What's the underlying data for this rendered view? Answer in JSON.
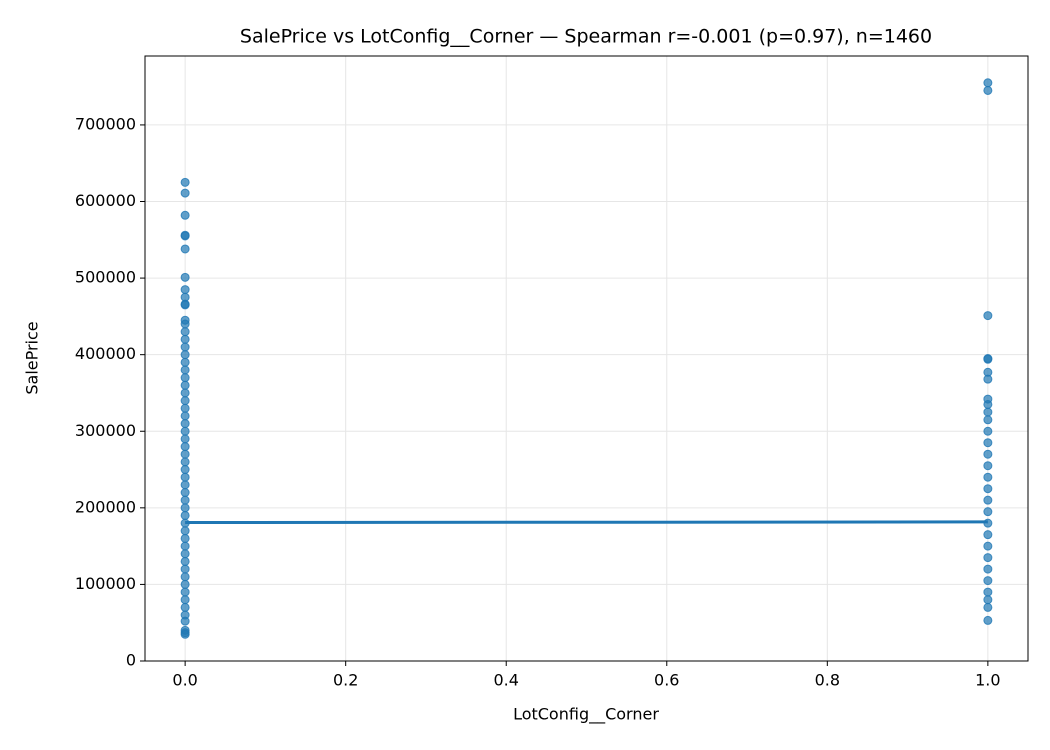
{
  "chart_data": {
    "type": "scatter",
    "title": "SalePrice vs LotConfig__Corner — Spearman r=-0.001 (p=0.97), n=1460",
    "x_label": "LotConfig__Corner",
    "y_label": "SalePrice",
    "color": "#1f77b4",
    "grid": true,
    "xlim": [
      -0.05,
      1.05
    ],
    "ylim": [
      0,
      790000
    ],
    "xticks": [
      {
        "value": 0,
        "label": "0.0"
      },
      0.2,
      0.4,
      0.6,
      0.8,
      {
        "value": 1,
        "label": "1.0"
      }
    ],
    "yticks": [
      0,
      100000,
      200000,
      300000,
      400000,
      500000,
      600000,
      700000
    ],
    "x": [
      0,
      0,
      0,
      0,
      0,
      0,
      0,
      0,
      0,
      0,
      0,
      0,
      0,
      0,
      0,
      0,
      0,
      0,
      0,
      0,
      0,
      0,
      0,
      0,
      0,
      0,
      0,
      0,
      0,
      0,
      0,
      0,
      0,
      0,
      0,
      0,
      0,
      0,
      0,
      0,
      0,
      0,
      0,
      0,
      0,
      0,
      0,
      0,
      0,
      0,
      0,
      0,
      0,
      0,
      0,
      1,
      1,
      1,
      1,
      1,
      1,
      1,
      1,
      1,
      1,
      1,
      1,
      1,
      1,
      1,
      1,
      1,
      1,
      1,
      1,
      1,
      1,
      1,
      1,
      1,
      1,
      1,
      1,
      1
    ],
    "values": [
      625000,
      611000,
      582000,
      556000,
      555000,
      538000,
      501000,
      485000,
      475000,
      466000,
      465000,
      445000,
      440000,
      430000,
      420000,
      410000,
      400000,
      390000,
      380000,
      370000,
      360000,
      350000,
      340000,
      330000,
      320000,
      310000,
      300000,
      290000,
      280000,
      270000,
      260000,
      250000,
      240000,
      230000,
      220000,
      210000,
      200000,
      190000,
      180000,
      170000,
      160000,
      150000,
      140000,
      130000,
      120000,
      110000,
      100000,
      90000,
      80000,
      70000,
      60000,
      52000,
      40000,
      37000,
      34900,
      755000,
      745000,
      451000,
      395000,
      394000,
      377000,
      368000,
      342000,
      335000,
      325000,
      315000,
      300000,
      285000,
      270000,
      255000,
      240000,
      225000,
      210000,
      195000,
      180000,
      165000,
      150000,
      135000,
      120000,
      105000,
      90000,
      80000,
      70000,
      53000
    ],
    "fit_line": {
      "x": [
        0,
        1
      ],
      "values": [
        180800,
        181600
      ]
    }
  }
}
